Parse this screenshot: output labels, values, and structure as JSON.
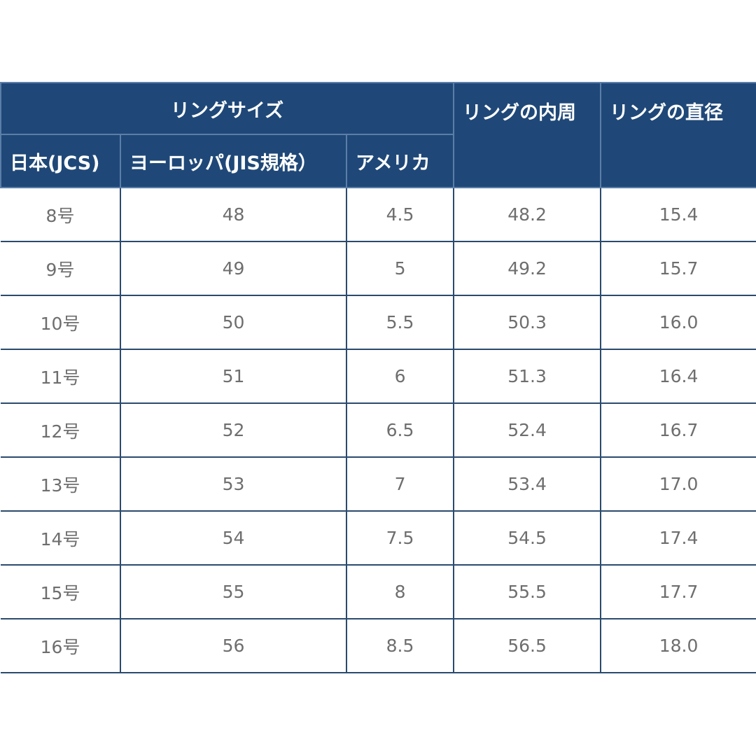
{
  "table": {
    "group_header": "リングサイズ",
    "inner_circumference_header": "リングの内周",
    "diameter_header": "リングの直径",
    "sub_headers": [
      "日本(JCS)",
      "ヨーロッパ(JIS規格）",
      "アメリカ"
    ],
    "rows": [
      [
        "8号",
        "48",
        "4.5",
        "48.2",
        "15.4"
      ],
      [
        "9号",
        "49",
        "5",
        "49.2",
        "15.7"
      ],
      [
        "10号",
        "50",
        "5.5",
        "50.3",
        "16.0"
      ],
      [
        "11号",
        "51",
        "6",
        "51.3",
        "16.4"
      ],
      [
        "12号",
        "52",
        "6.5",
        "52.4",
        "16.7"
      ],
      [
        "13号",
        "53",
        "7",
        "53.4",
        "17.0"
      ],
      [
        "14号",
        "54",
        "7.5",
        "54.5",
        "17.4"
      ],
      [
        "15号",
        "55",
        "8",
        "55.5",
        "17.7"
      ],
      [
        "16号",
        "56",
        "8.5",
        "56.5",
        "18.0"
      ]
    ]
  },
  "colors": {
    "header_bg": "#1f4878",
    "header_text": "#ffffff",
    "cell_text": "#6e6e6e",
    "border": "#2b4a6e"
  }
}
